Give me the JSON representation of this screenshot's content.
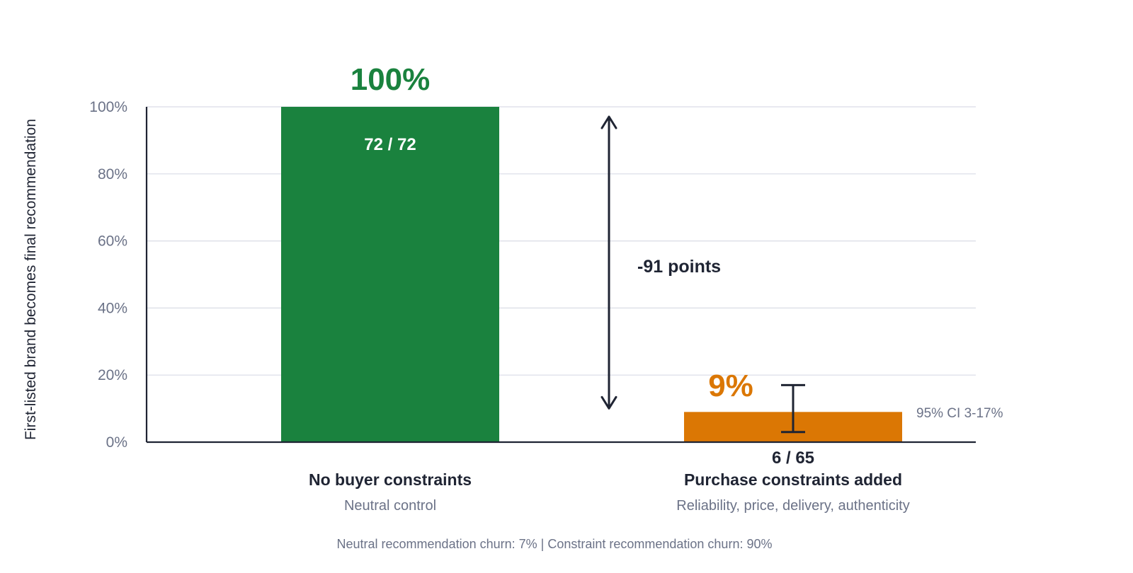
{
  "chart_data": {
    "type": "bar",
    "ylabel": "First-listed brand becomes final recommendation",
    "ylim": [
      0,
      100
    ],
    "yticks": [
      "0%",
      "20%",
      "40%",
      "60%",
      "80%",
      "100%"
    ],
    "ytick_values": [
      0,
      20,
      40,
      60,
      80,
      100
    ],
    "grid": true,
    "categories": [
      "No buyer constraints",
      "Purchase constraints added"
    ],
    "subtitles": [
      "Neutral control",
      "Reliability, price, delivery, authenticity"
    ],
    "values": [
      100,
      9
    ],
    "value_labels": [
      "100%",
      "9%"
    ],
    "count_labels": [
      "72 / 72",
      "6 / 65"
    ],
    "colors": [
      "#1a823e",
      "#db7704"
    ],
    "error_bar": {
      "category_index": 1,
      "low": 3,
      "high": 17,
      "label": "95% CI 3-17%"
    },
    "difference": {
      "from": 100,
      "to": 9,
      "label": "-91 points"
    },
    "footnote": "Neutral recommendation churn: 7% | Constraint recommendation churn: 90%"
  },
  "colors": {
    "axis": "#1f2433",
    "grid": "#d9dce6",
    "muted": "#6b7287"
  }
}
